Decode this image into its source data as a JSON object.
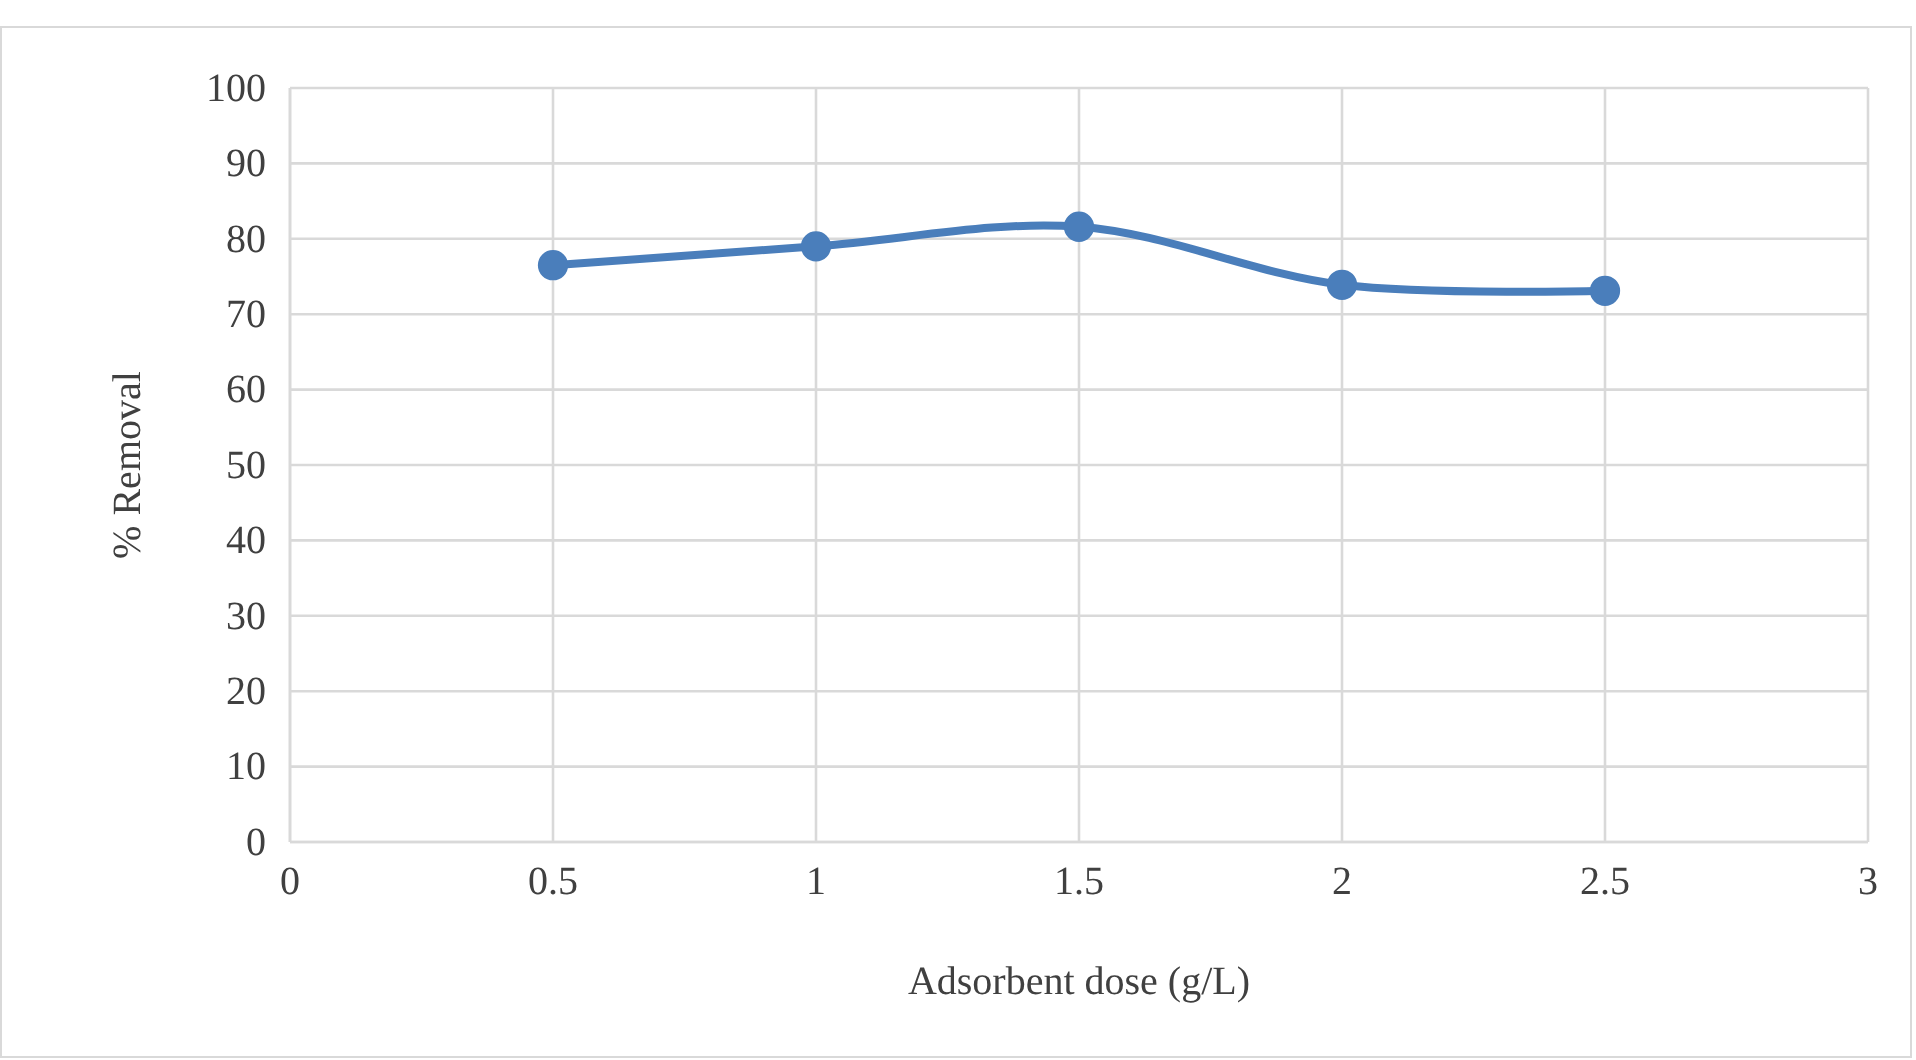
{
  "chart_data": {
    "type": "line",
    "xlabel": "Adsorbent dose (g/L)",
    "ylabel": "% Removal",
    "x": [
      0.5,
      1,
      1.5,
      2,
      2.5
    ],
    "series": [
      {
        "color": "#4a7ebb",
        "values": [
          76.5,
          79.0,
          81.6,
          73.9,
          73.1
        ]
      }
    ],
    "xlim": [
      0,
      3
    ],
    "xticks": [
      0,
      0.5,
      1,
      1.5,
      2,
      2.5,
      3
    ],
    "ylim": [
      0,
      100
    ],
    "yticks": [
      0,
      10,
      20,
      30,
      40,
      50,
      60,
      70,
      80,
      90,
      100
    ],
    "grid": true,
    "marker": "circle",
    "line_style": "solid"
  }
}
